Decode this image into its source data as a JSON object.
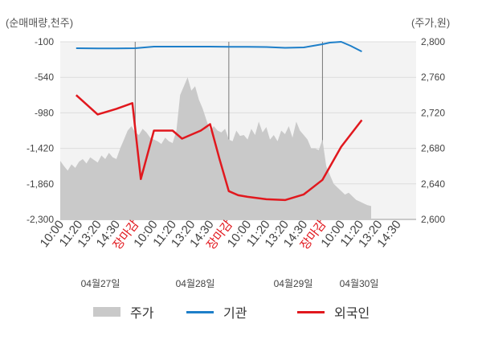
{
  "chart_data": {
    "type": "line",
    "left_unit": "(순매매량,천주)",
    "right_unit": "(주가,원)",
    "left_axis": {
      "ticks": [
        "-100",
        "-540",
        "-980",
        "-1,420",
        "-1,860",
        "-2,300"
      ],
      "range": [
        -2300,
        -100
      ]
    },
    "right_axis": {
      "ticks": [
        "2,800",
        "2,760",
        "2,720",
        "2,680",
        "2,640",
        "2,600"
      ],
      "range": [
        2600,
        2800
      ]
    },
    "x_ticks": [
      {
        "label": "10:00",
        "marker": false
      },
      {
        "label": "11:20",
        "marker": false
      },
      {
        "label": "13:20",
        "marker": false
      },
      {
        "label": "14:30",
        "marker": false
      },
      {
        "label": "장마감",
        "marker": true
      },
      {
        "label": "10:00",
        "marker": false
      },
      {
        "label": "11:20",
        "marker": false
      },
      {
        "label": "13:20",
        "marker": false
      },
      {
        "label": "14:30",
        "marker": false
      },
      {
        "label": "장마감",
        "marker": true
      },
      {
        "label": "10:00",
        "marker": false
      },
      {
        "label": "11:20",
        "marker": false
      },
      {
        "label": "13:20",
        "marker": false
      },
      {
        "label": "14:30",
        "marker": false
      },
      {
        "label": "장마감",
        "marker": true
      },
      {
        "label": "10:00",
        "marker": false
      },
      {
        "label": "11:20",
        "marker": false
      },
      {
        "label": "13:20",
        "marker": false
      },
      {
        "label": "14:30",
        "marker": false
      }
    ],
    "dates": [
      "04월27일",
      "04월28일",
      "04월29일",
      "04월30일"
    ],
    "legend": [
      {
        "name": "주가",
        "type": "area",
        "color": "#c9c9c9"
      },
      {
        "name": "기관",
        "type": "line",
        "color": "#1e7fc9"
      },
      {
        "name": "외국인",
        "type": "line",
        "color": "#e1181e"
      }
    ],
    "series": [
      {
        "name": "주가",
        "axis": "right",
        "color": "#c9c9c9",
        "x": [
          0,
          0.2,
          0.4,
          0.6,
          0.8,
          1,
          1.2,
          1.4,
          1.6,
          1.8,
          2,
          2.2,
          2.4,
          2.6,
          2.8,
          3,
          3.2,
          3.4,
          3.6,
          3.8,
          4,
          4.2,
          4.4,
          4.6,
          4.8,
          5,
          5.2,
          5.4,
          5.6,
          5.8,
          6,
          6.2,
          6.4,
          6.6,
          6.8,
          7,
          7.2,
          7.4,
          7.6,
          7.8,
          8,
          8.2,
          8.4,
          8.6,
          8.8,
          9,
          9.2,
          9.4,
          9.6,
          9.8,
          10,
          10.2,
          10.4,
          10.6,
          10.8,
          11,
          11.2,
          11.4,
          11.6,
          11.8,
          12,
          12.2,
          12.4,
          12.6,
          12.8,
          13,
          13.2,
          13.4,
          13.6,
          13.8,
          14,
          14.2,
          14.4,
          14.6,
          14.8,
          15,
          15.2,
          15.4,
          15.6,
          15.8,
          16,
          16.2,
          16.4,
          16.6
        ],
        "values": [
          2666,
          2660,
          2655,
          2662,
          2658,
          2665,
          2668,
          2663,
          2670,
          2667,
          2664,
          2672,
          2668,
          2675,
          2670,
          2668,
          2680,
          2690,
          2700,
          2705,
          2698,
          2695,
          2702,
          2698,
          2692,
          2690,
          2688,
          2685,
          2692,
          2688,
          2686,
          2700,
          2740,
          2750,
          2760,
          2745,
          2750,
          2735,
          2725,
          2712,
          2700,
          2705,
          2700,
          2698,
          2702,
          2690,
          2688,
          2700,
          2694,
          2695,
          2690,
          2702,
          2695,
          2710,
          2698,
          2704,
          2690,
          2695,
          2688,
          2700,
          2696,
          2705,
          2692,
          2710,
          2700,
          2695,
          2690,
          2680,
          2680,
          2678,
          2690,
          2660,
          2650,
          2640,
          2636,
          2632,
          2628,
          2630,
          2626,
          2622,
          2620,
          2618,
          2616,
          2615
        ]
      },
      {
        "name": "기관",
        "axis": "left",
        "color": "#1e7fc9",
        "x": [
          0.85,
          2,
          3,
          4,
          5,
          6,
          7,
          8,
          9,
          10,
          11,
          12,
          13,
          13.5,
          14,
          14.4,
          15,
          15.5,
          16.1
        ],
        "values": [
          -180,
          -182,
          -182,
          -180,
          -160,
          -160,
          -160,
          -160,
          -162,
          -162,
          -165,
          -175,
          -170,
          -150,
          -130,
          -110,
          -100,
          -150,
          -220
        ]
      },
      {
        "name": "외국인",
        "axis": "left",
        "color": "#e1181e",
        "x": [
          0.85,
          2,
          3,
          3.85,
          4.3,
          5,
          6,
          6.5,
          7,
          7.5,
          8,
          8.5,
          9,
          9.5,
          10,
          11,
          12,
          13,
          14,
          15,
          16.1
        ],
        "values": [
          -760,
          -1000,
          -930,
          -860,
          -1800,
          -1200,
          -1200,
          -1300,
          -1250,
          -1200,
          -1120,
          -1550,
          -1950,
          -2000,
          -2020,
          -2050,
          -2060,
          -1990,
          -1810,
          -1400,
          -1070
        ]
      }
    ],
    "grid": true,
    "axis_ranges_x": [
      0,
      19
    ]
  }
}
